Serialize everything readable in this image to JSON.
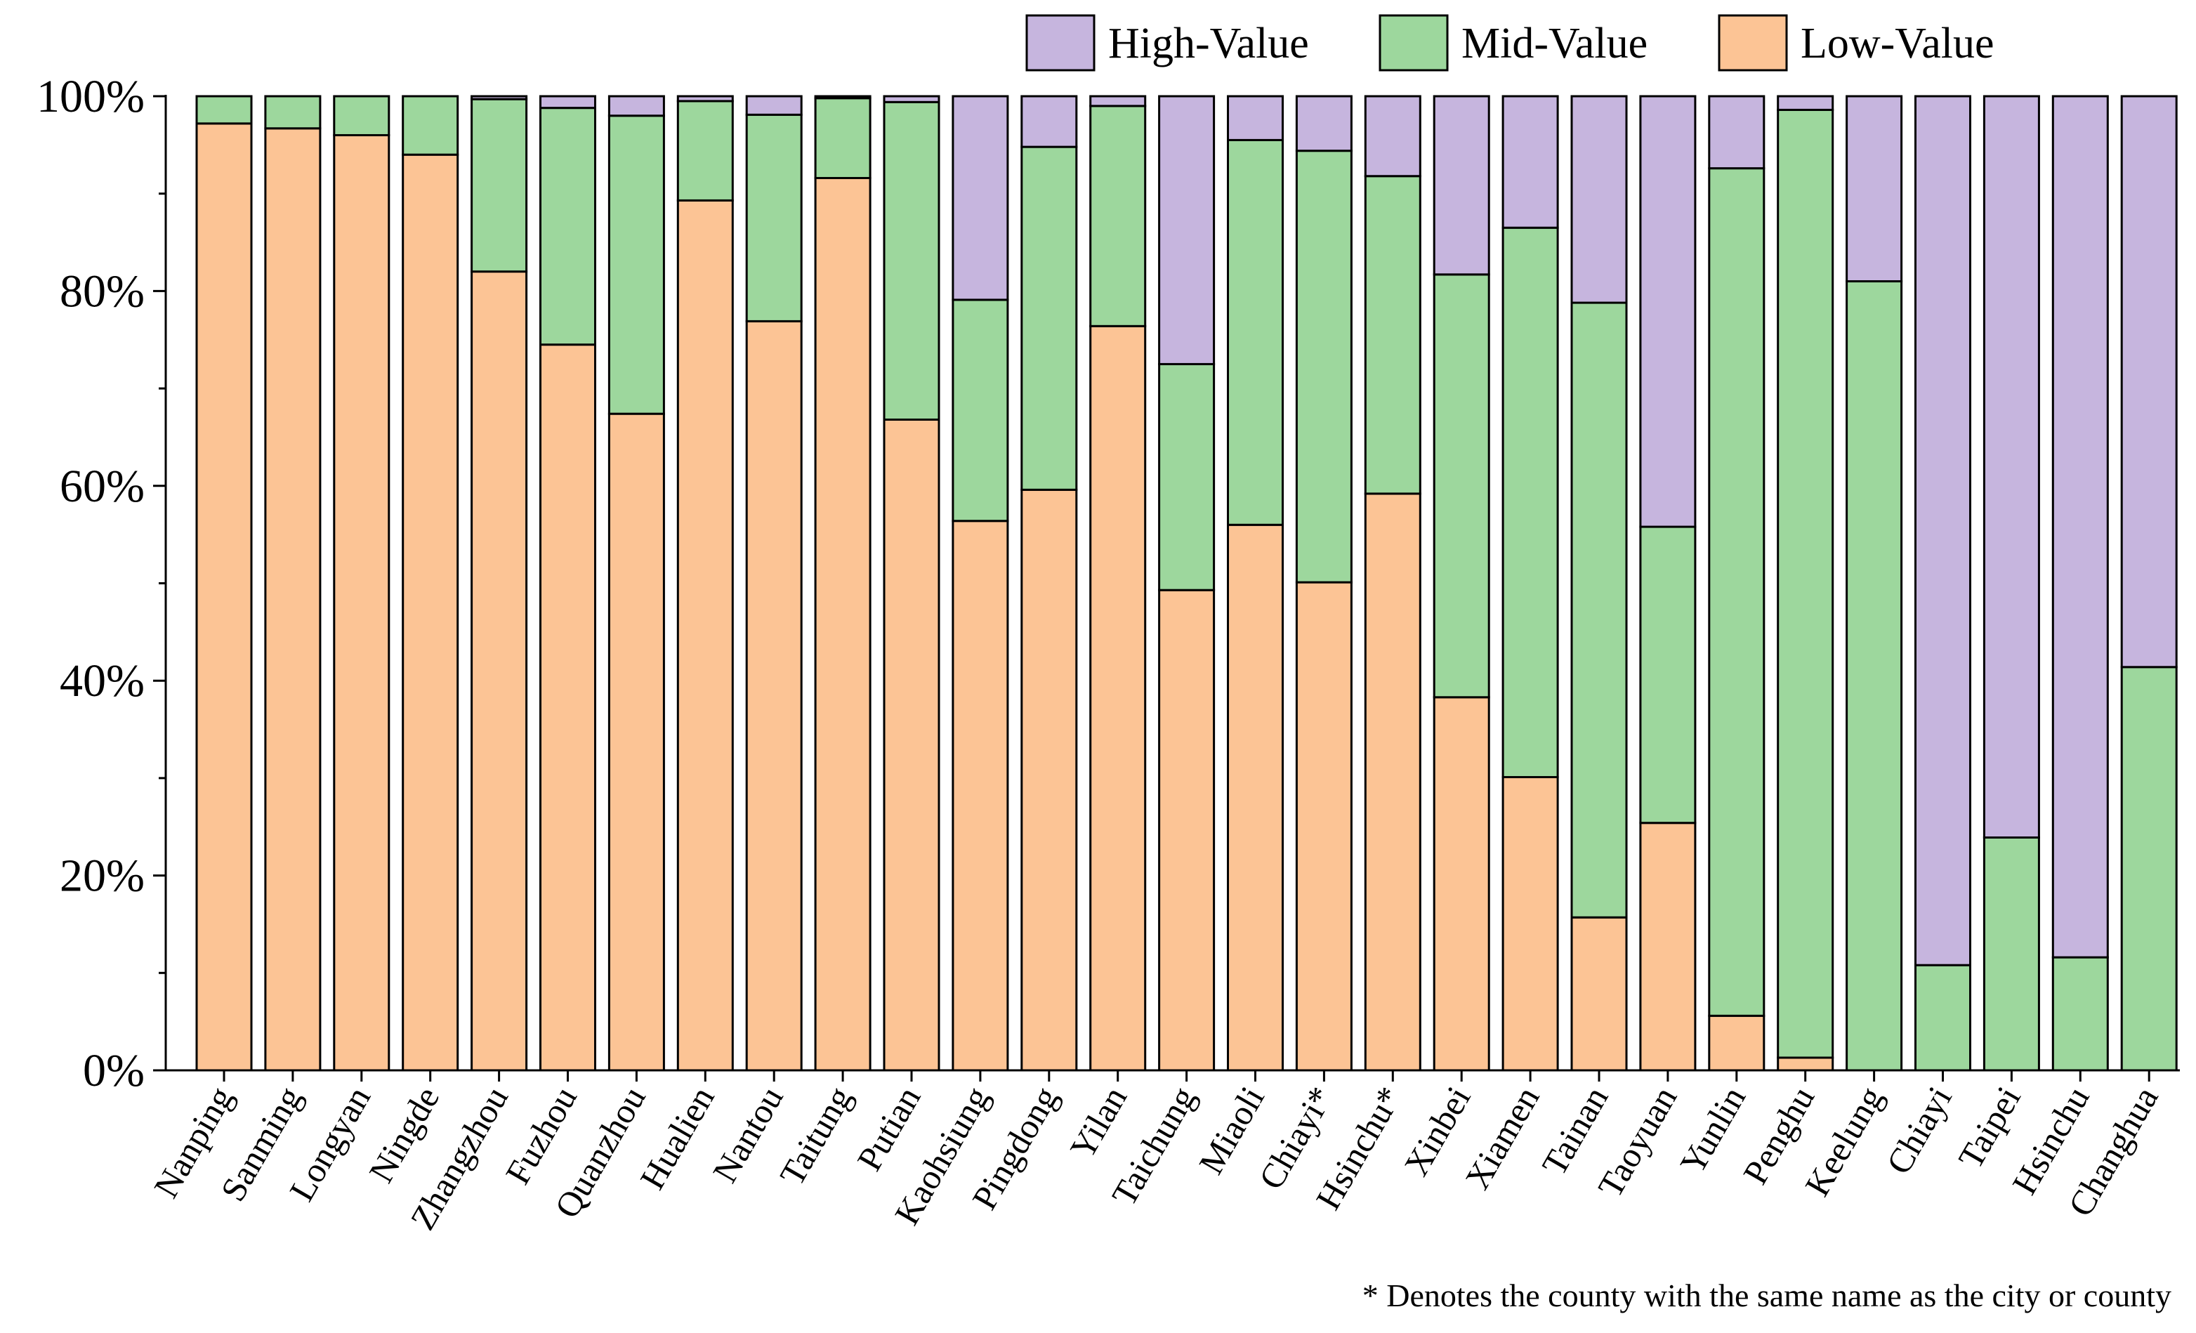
{
  "chart_data": {
    "type": "bar",
    "stacked": true,
    "normalized_percent": true,
    "categories": [
      "Nanping",
      "Sanming",
      "Longyan",
      "Ningde",
      "Zhangzhou",
      "Fuzhou",
      "Quanzhou",
      "Hualien",
      "Nantou",
      "Taitung",
      "Putian",
      "Kaohsiung",
      "Pingdong",
      "Yilan",
      "Taichung",
      "Miaoli",
      "Chiayi*",
      "Hsinchu*",
      "Xinbei",
      "Xiamen",
      "Tainan",
      "Taoyuan",
      "Yunlin",
      "Penghu",
      "Keelung",
      "Chiayi",
      "Taipei",
      "Hsinchu",
      "Changhua"
    ],
    "series": [
      {
        "name": "Low-Value",
        "color": "#fcc495",
        "values": [
          97.2,
          96.7,
          96.0,
          94.0,
          82.0,
          74.5,
          67.4,
          89.3,
          76.9,
          91.6,
          66.8,
          56.4,
          59.6,
          76.4,
          49.3,
          56.0,
          50.1,
          59.2,
          38.3,
          30.1,
          15.7,
          25.4,
          5.6,
          1.3,
          0,
          0,
          0,
          0,
          0
        ]
      },
      {
        "name": "Mid-Value",
        "color": "#9dd79d",
        "values": [
          2.8,
          3.3,
          4.0,
          6.0,
          17.7,
          24.3,
          30.6,
          10.2,
          21.2,
          8.2,
          32.6,
          22.7,
          35.2,
          22.6,
          23.2,
          39.5,
          44.3,
          32.6,
          43.4,
          56.4,
          63.1,
          30.4,
          87.0,
          97.3,
          81.0,
          10.8,
          23.9,
          11.6,
          41.4
        ]
      },
      {
        "name": "High-Value",
        "color": "#c6b5de",
        "values": [
          0.0,
          0.0,
          0.0,
          0.0,
          0.3,
          1.2,
          2.0,
          0.5,
          1.9,
          0.2,
          0.6,
          20.9,
          5.2,
          1.0,
          27.5,
          4.5,
          5.6,
          8.2,
          18.3,
          13.5,
          21.2,
          44.2,
          7.4,
          1.4,
          19.0,
          89.2,
          76.1,
          88.4,
          58.6
        ]
      }
    ],
    "legend_order": [
      "High-Value",
      "Mid-Value",
      "Low-Value"
    ],
    "legend_position": "top-right",
    "y_ticks": [
      "0%",
      "20%",
      "40%",
      "60%",
      "80%",
      "100%"
    ],
    "ylim": [
      0,
      100
    ],
    "title": "",
    "xlabel": "",
    "ylabel": "",
    "footnote": "* Denotes the county with the same name as the city or county"
  }
}
